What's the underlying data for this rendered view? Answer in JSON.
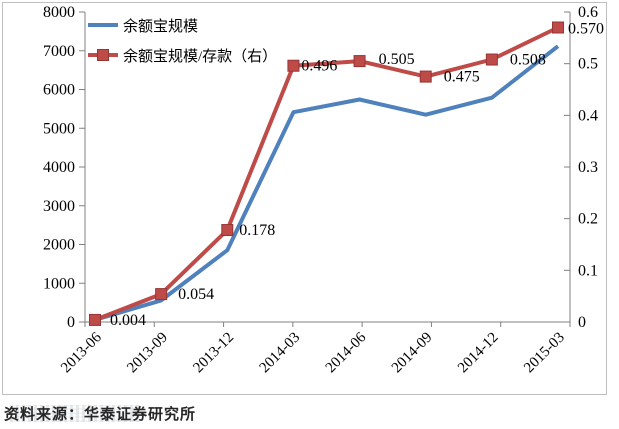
{
  "legend": {
    "items": [
      {
        "label": "余额宝规模",
        "color": "#4F81BD",
        "marker": "line"
      },
      {
        "label": "余额宝规模/存款（右）",
        "color": "#BE4B48",
        "marker": "line-square"
      }
    ]
  },
  "footer": {
    "source_note": "资料来源：华泰证券研究所"
  },
  "chart_data": {
    "type": "line",
    "title": "",
    "categories": [
      "2013-06",
      "2013-09",
      "2013-12",
      "2014-03",
      "2014-06",
      "2014-09",
      "2014-12",
      "2015-03"
    ],
    "series": [
      {
        "name": "余额宝规模",
        "axis": "left",
        "color": "#4F81BD",
        "marker": "none",
        "values": [
          57,
          557,
          1853,
          5413,
          5742,
          5349,
          5789,
          7117
        ]
      },
      {
        "name": "余额宝规模/存款（右）",
        "axis": "right",
        "color": "#BE4B48",
        "marker_border": "#943634",
        "marker": "square",
        "values": [
          0.004,
          0.054,
          0.178,
          0.496,
          0.505,
          0.475,
          0.508,
          0.57
        ],
        "data_labels": [
          "0.004",
          "0.054",
          "0.178",
          "0.496",
          "0.505",
          "0.475",
          "0.508",
          "0.570"
        ]
      }
    ],
    "left_axis": {
      "min": 0,
      "max": 8000,
      "step": 1000,
      "tick_labels": [
        "0",
        "1000",
        "2000",
        "3000",
        "4000",
        "5000",
        "6000",
        "7000",
        "8000"
      ]
    },
    "right_axis": {
      "min": 0,
      "max": 0.6,
      "step": 0.1,
      "tick_labels": [
        "0",
        "0.1",
        "0.2",
        "0.3",
        "0.4",
        "0.5",
        "0.6"
      ]
    },
    "grid": false,
    "legend_position": "top-left-inside",
    "axis_color": "#808080",
    "text_color": "#000000"
  }
}
